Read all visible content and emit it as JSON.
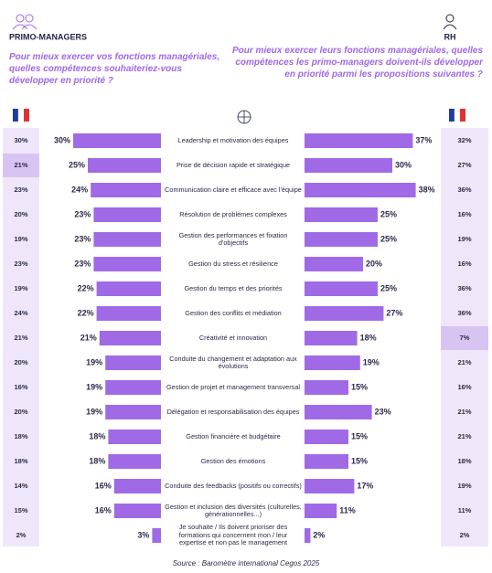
{
  "header": {
    "left_title": "PRIMO-MANAGERS",
    "left_question": "Pour mieux exercer vos fonctions managériales, quelles compétences souhaiteriez-vous développer en priorité ?",
    "right_title": "RH",
    "right_question": "Pour mieux exercer leurs fonctions managériales, quelles compétences les primo-managers doivent-ils développer en priorité parmi les propositions suivantes ?"
  },
  "chart_data": {
    "type": "butterfly",
    "color": "#a06ae6",
    "categories": [
      "Leadership et motivation des équipes",
      "Prise de décision rapide et stratégique",
      "Communication claire et efficace avec l'équipe",
      "Résolution de problèmes complexes",
      "Gestion des performances et fixation d'objectifs",
      "Gestion du stress et résilience",
      "Gestion du temps et des priorités",
      "Gestion des conflits et médiation",
      "Créativité et innovation",
      "Conduite du changement et adaptation aux évolutions",
      "Gestion de projet et management transversal",
      "Délégation et responsabilisation des équipes",
      "Gestion financière et budgétaire",
      "Gestion des émotions",
      "Conduite des feedbacks (positifs ou correctifs)",
      "Gestion et inclusion des diversités (culturelles, générationnelles...)",
      "Je souhaite / Ils doivent prioriser des formations qui concernent mon / leur expertise et non pas le management"
    ],
    "series": [
      {
        "name": "PRIMO-MANAGERS",
        "values": [
          30,
          25,
          24,
          23,
          23,
          23,
          22,
          22,
          21,
          19,
          19,
          19,
          18,
          18,
          16,
          16,
          3
        ],
        "value_labels": [
          "30%",
          "25%",
          "24%",
          "23%",
          "23%",
          "23%",
          "22%",
          "22%",
          "21%",
          "19%",
          "19%",
          "19%",
          "18%",
          "18%",
          "16%",
          "16%",
          "3%"
        ]
      },
      {
        "name": "RH",
        "values": [
          37,
          30,
          38,
          25,
          25,
          20,
          25,
          27,
          18,
          19,
          15,
          23,
          15,
          15,
          17,
          11,
          2
        ],
        "value_labels": [
          "37%",
          "30%",
          "38%",
          "25%",
          "25%",
          "20%",
          "25%",
          "27%",
          "18%",
          "19%",
          "15%",
          "23%",
          "15%",
          "15%",
          "17%",
          "11%",
          "2%"
        ]
      }
    ],
    "france": [
      {
        "values": [
          30,
          21,
          23,
          20,
          19,
          23,
          19,
          24,
          21,
          20,
          16,
          20,
          18,
          18,
          14,
          15,
          2
        ],
        "value_labels": [
          "30%",
          "21%",
          "23%",
          "20%",
          "19%",
          "23%",
          "19%",
          "24%",
          "21%",
          "20%",
          "16%",
          "20%",
          "18%",
          "18%",
          "14%",
          "15%",
          "2%"
        ],
        "highlight": 1
      },
      {
        "values": [
          32,
          27,
          36,
          16,
          19,
          16,
          36,
          36,
          7,
          21,
          16,
          21,
          21,
          18,
          19,
          11,
          2
        ],
        "value_labels": [
          "32%",
          "27%",
          "36%",
          "16%",
          "19%",
          "16%",
          "36%",
          "36%",
          "7%",
          "21%",
          "16%",
          "21%",
          "21%",
          "18%",
          "19%",
          "11%",
          "2%"
        ],
        "highlight": 8
      }
    ]
  },
  "source": "Source : Baromètre international Cegos 2025"
}
